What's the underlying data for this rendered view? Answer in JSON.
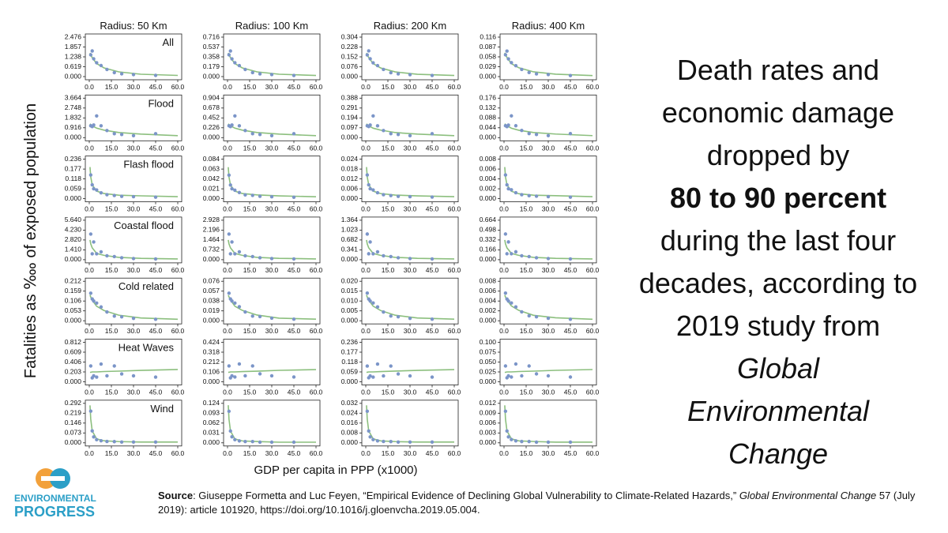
{
  "chart_data": {
    "type": "scatter-grid",
    "ylabel": "Fatalities as ‱ of exposed population",
    "xlabel": "GDP per capita in PPP (x1000)",
    "columns": [
      "Radius: 50 Km",
      "Radius: 100 Km",
      "Radius: 200 Km",
      "Radius: 400 Km"
    ],
    "rows": [
      "All",
      "Flood",
      "Flash flood",
      "Coastal flood",
      "Cold related",
      "Heat Waves",
      "Wind"
    ],
    "point_color": "#7b95c8",
    "fit_color": "#8cbf7e",
    "xlim": [
      0,
      60
    ],
    "xticks": [
      {
        "value": 0,
        "label": "0.0"
      },
      {
        "value": 15,
        "label": "15.0"
      },
      {
        "value": 30,
        "label": "30.0"
      },
      {
        "value": 45,
        "label": "45.0"
      },
      {
        "value": 60,
        "label": "60.0"
      }
    ],
    "x": [
      1,
      2,
      3,
      5,
      8,
      12,
      17,
      22,
      30,
      45
    ],
    "fit_x": [
      0.5,
      1,
      2,
      5,
      10,
      20,
      35,
      60
    ],
    "panels": [
      {
        "ylim": [
          0,
          2.476
        ],
        "yticks": [
          {
            "value": 0,
            "label": "0.000"
          },
          0.619,
          1.238,
          1.857,
          2.476
        ],
        "values": [
          1.362,
          1.609,
          1.114,
          0.867,
          0.693,
          0.446,
          0.248,
          0.173,
          0.124,
          0.074
        ],
        "fit": [
          1.486,
          1.362,
          1.188,
          0.817,
          0.545,
          0.297,
          0.149,
          0.074
        ]
      },
      {
        "ylim": [
          0,
          0.716
        ],
        "yticks": [
          {
            "value": 0,
            "label": "0.000"
          },
          0.179,
          0.358,
          0.537,
          0.716
        ],
        "values": [
          0.394,
          0.465,
          0.322,
          0.251,
          0.2,
          0.129,
          0.072,
          0.05,
          0.036,
          0.021
        ],
        "fit": [
          0.43,
          0.394,
          0.344,
          0.236,
          0.158,
          0.086,
          0.043,
          0.021
        ]
      },
      {
        "ylim": [
          0,
          0.304
        ],
        "yticks": [
          {
            "value": 0,
            "label": "0.000"
          },
          0.076,
          0.152,
          0.228,
          0.304
        ],
        "values": [
          0.167,
          0.198,
          0.137,
          0.106,
          0.085,
          0.055,
          0.03,
          0.021,
          0.015,
          0.009
        ],
        "fit": [
          0.182,
          0.167,
          0.146,
          0.1,
          0.067,
          0.036,
          0.018,
          0.009
        ]
      },
      {
        "ylim": [
          0,
          0.116
        ],
        "yticks": [
          {
            "value": 0,
            "label": "0.000"
          },
          0.029,
          0.058,
          0.087,
          0.116
        ],
        "values": [
          0.064,
          0.075,
          0.052,
          0.041,
          0.032,
          0.021,
          0.012,
          0.008,
          0.006,
          0.003
        ],
        "fit": [
          0.07,
          0.064,
          0.056,
          0.038,
          0.026,
          0.014,
          0.007,
          0.003
        ]
      },
      {
        "ylim": [
          0,
          3.664
        ],
        "yticks": [
          {
            "value": 0,
            "label": "0.000"
          },
          0.916,
          1.832,
          2.748,
          3.664
        ],
        "values": [
          1.099,
          1.026,
          1.172,
          2.015,
          1.099,
          0.66,
          0.366,
          0.293,
          0.183,
          0.366
        ],
        "fit": [
          1.282,
          1.209,
          1.099,
          0.879,
          0.696,
          0.476,
          0.33,
          0.183
        ]
      },
      {
        "ylim": [
          0,
          0.904
        ],
        "yticks": [
          {
            "value": 0,
            "label": "0.000"
          },
          0.226,
          0.452,
          0.678,
          0.904
        ],
        "values": [
          0.271,
          0.253,
          0.289,
          0.497,
          0.271,
          0.163,
          0.09,
          0.072,
          0.045,
          0.09
        ],
        "fit": [
          0.316,
          0.298,
          0.271,
          0.217,
          0.172,
          0.118,
          0.081,
          0.045
        ]
      },
      {
        "ylim": [
          0,
          0.388
        ],
        "yticks": [
          {
            "value": 0,
            "label": "0.000"
          },
          0.097,
          0.194,
          0.291,
          0.388
        ],
        "values": [
          0.116,
          0.109,
          0.124,
          0.213,
          0.116,
          0.07,
          0.039,
          0.031,
          0.019,
          0.039
        ],
        "fit": [
          0.136,
          0.128,
          0.116,
          0.093,
          0.074,
          0.05,
          0.035,
          0.019
        ]
      },
      {
        "ylim": [
          0,
          0.176
        ],
        "yticks": [
          {
            "value": 0,
            "label": "0.000"
          },
          0.044,
          0.088,
          0.132,
          0.176
        ],
        "values": [
          0.053,
          0.049,
          0.056,
          0.097,
          0.053,
          0.032,
          0.018,
          0.014,
          0.009,
          0.018
        ],
        "fit": [
          0.062,
          0.058,
          0.053,
          0.042,
          0.033,
          0.023,
          0.016,
          0.009
        ]
      },
      {
        "ylim": [
          0,
          0.236
        ],
        "yticks": [
          {
            "value": 0,
            "label": "0.000"
          },
          0.059,
          0.118,
          0.177,
          0.236
        ],
        "values": [
          0.142,
          0.083,
          0.059,
          0.052,
          0.035,
          0.024,
          0.019,
          0.014,
          0.012,
          0.009
        ],
        "fit": [
          0.189,
          0.13,
          0.083,
          0.045,
          0.031,
          0.021,
          0.017,
          0.012
        ]
      },
      {
        "ylim": [
          0,
          0.084
        ],
        "yticks": [
          {
            "value": 0,
            "label": "0.000"
          },
          0.021,
          0.042,
          0.063,
          0.084
        ],
        "values": [
          0.05,
          0.029,
          0.021,
          0.018,
          0.013,
          0.008,
          0.007,
          0.005,
          0.004,
          0.003
        ],
        "fit": [
          0.067,
          0.046,
          0.029,
          0.016,
          0.011,
          0.008,
          0.006,
          0.004
        ]
      },
      {
        "ylim": [
          0,
          0.024
        ],
        "yticks": [
          {
            "value": 0,
            "label": "0.000"
          },
          0.006,
          0.012,
          0.018,
          0.024
        ],
        "values": [
          0.0144,
          0.0084,
          0.006,
          0.0053,
          0.0036,
          0.0024,
          0.0019,
          0.0014,
          0.0012,
          0.001
        ],
        "fit": [
          0.0192,
          0.0132,
          0.0084,
          0.0046,
          0.0031,
          0.0022,
          0.0017,
          0.0012
        ]
      },
      {
        "ylim": [
          0,
          0.008
        ],
        "yticks": [
          {
            "value": 0,
            "label": "0.000"
          },
          0.002,
          0.004,
          0.006,
          0.008
        ],
        "values": [
          0.0048,
          0.0028,
          0.002,
          0.0018,
          0.0012,
          0.0008,
          0.0006,
          0.0005,
          0.0004,
          0.0003
        ],
        "fit": [
          0.0064,
          0.0044,
          0.0028,
          0.0015,
          0.001,
          0.0007,
          0.0006,
          0.0004
        ]
      },
      {
        "ylim": [
          0,
          5.64
        ],
        "yticks": [
          {
            "value": 0,
            "label": "0.000"
          },
          {
            "value": 1.41,
            "label": "1.410"
          },
          {
            "value": 2.82,
            "label": "2.820"
          },
          {
            "value": 4.23,
            "label": "4.230"
          },
          {
            "value": 5.64,
            "label": "5.640"
          }
        ],
        "values": [
          3.666,
          0.846,
          2.538,
          0.846,
          1.128,
          0.564,
          0.451,
          0.282,
          0.169,
          0.113
        ],
        "fit": [
          2.82,
          2.256,
          1.692,
          0.902,
          0.62,
          0.338,
          0.197,
          0.113
        ]
      },
      {
        "ylim": [
          0,
          2.928
        ],
        "yticks": [
          {
            "value": 0,
            "label": "0.000"
          },
          0.732,
          1.464,
          2.196,
          2.928
        ],
        "values": [
          1.903,
          0.439,
          1.318,
          0.439,
          0.586,
          0.293,
          0.234,
          0.146,
          0.088,
          0.059
        ],
        "fit": [
          1.464,
          1.171,
          0.878,
          0.468,
          0.322,
          0.176,
          0.102,
          0.059
        ]
      },
      {
        "ylim": [
          0,
          1.364
        ],
        "yticks": [
          {
            "value": 0,
            "label": "0.000"
          },
          0.341,
          0.682,
          1.023,
          1.364
        ],
        "values": [
          0.887,
          0.205,
          0.614,
          0.205,
          0.273,
          0.136,
          0.109,
          0.068,
          0.041,
          0.027
        ],
        "fit": [
          0.682,
          0.546,
          0.409,
          0.218,
          0.15,
          0.082,
          0.048,
          0.027
        ]
      },
      {
        "ylim": [
          0,
          0.664
        ],
        "yticks": [
          {
            "value": 0,
            "label": "0.000"
          },
          0.166,
          0.332,
          0.498,
          0.664
        ],
        "values": [
          0.432,
          0.1,
          0.299,
          0.1,
          0.133,
          0.066,
          0.053,
          0.033,
          0.02,
          0.013
        ],
        "fit": [
          0.332,
          0.266,
          0.199,
          0.106,
          0.073,
          0.04,
          0.023,
          0.013
        ]
      },
      {
        "ylim": [
          0,
          0.212
        ],
        "yticks": [
          {
            "value": 0,
            "label": "0.000"
          },
          0.053,
          0.106,
          0.159,
          0.212
        ],
        "values": [
          0.148,
          0.117,
          0.106,
          0.095,
          0.074,
          0.047,
          0.025,
          0.021,
          0.013,
          0.008
        ],
        "fit": [
          0.138,
          0.127,
          0.11,
          0.078,
          0.055,
          0.03,
          0.015,
          0.008
        ]
      },
      {
        "ylim": [
          0,
          0.076
        ],
        "yticks": [
          {
            "value": 0,
            "label": "0.000"
          },
          0.019,
          0.038,
          0.057,
          0.076
        ],
        "values": [
          0.053,
          0.042,
          0.038,
          0.034,
          0.027,
          0.017,
          0.009,
          0.008,
          0.005,
          0.003
        ],
        "fit": [
          0.049,
          0.046,
          0.04,
          0.028,
          0.02,
          0.011,
          0.005,
          0.003
        ]
      },
      {
        "ylim": [
          0,
          0.02
        ],
        "yticks": [
          {
            "value": 0,
            "label": "0.000"
          },
          0.005,
          {
            "value": 0.01,
            "label": "0.010"
          },
          0.015,
          {
            "value": 0.02,
            "label": "0.020"
          }
        ],
        "values": [
          0.014,
          0.011,
          0.01,
          0.009,
          0.007,
          0.0044,
          0.0024,
          0.002,
          0.0012,
          0.0008
        ],
        "fit": [
          0.013,
          0.012,
          0.0104,
          0.0074,
          0.0052,
          0.0028,
          0.0014,
          0.0008
        ]
      },
      {
        "ylim": [
          0,
          0.008
        ],
        "yticks": [
          {
            "value": 0,
            "label": "0.000"
          },
          0.002,
          0.004,
          0.006,
          0.008
        ],
        "values": [
          0.0056,
          0.0044,
          0.004,
          0.0036,
          0.0028,
          0.0018,
          0.001,
          0.0008,
          0.0005,
          0.0003
        ],
        "fit": [
          0.0052,
          0.0048,
          0.0042,
          0.003,
          0.0021,
          0.0011,
          0.0006,
          0.0003
        ]
      },
      {
        "ylim": [
          0,
          0.812
        ],
        "yticks": [
          {
            "value": 0,
            "label": "0.000"
          },
          0.203,
          0.406,
          0.609,
          0.812
        ],
        "values": [
          0.325,
          0.081,
          0.122,
          0.097,
          0.365,
          0.122,
          0.325,
          0.162,
          0.122,
          0.097
        ],
        "fit": [
          0.195,
          0.195,
          0.203,
          0.203,
          0.211,
          0.219,
          0.235,
          0.252
        ]
      },
      {
        "ylim": [
          0,
          0.424
        ],
        "yticks": [
          {
            "value": 0,
            "label": "0.000"
          },
          0.106,
          0.212,
          0.318,
          0.424
        ],
        "values": [
          0.17,
          0.042,
          0.064,
          0.051,
          0.191,
          0.064,
          0.17,
          0.085,
          0.064,
          0.051
        ],
        "fit": [
          0.102,
          0.102,
          0.106,
          0.106,
          0.11,
          0.114,
          0.123,
          0.131
        ]
      },
      {
        "ylim": [
          0,
          0.236
        ],
        "yticks": [
          {
            "value": 0,
            "label": "0.000"
          },
          0.059,
          0.118,
          0.177,
          0.236
        ],
        "values": [
          0.094,
          0.024,
          0.035,
          0.028,
          0.106,
          0.035,
          0.094,
          0.047,
          0.035,
          0.028
        ],
        "fit": [
          0.057,
          0.057,
          0.059,
          0.059,
          0.061,
          0.064,
          0.068,
          0.073
        ]
      },
      {
        "ylim": [
          0,
          0.1
        ],
        "yticks": [
          {
            "value": 0,
            "label": "0.000"
          },
          0.025,
          {
            "value": 0.05,
            "label": "0.050"
          },
          0.075,
          {
            "value": 0.1,
            "label": "0.100"
          }
        ],
        "values": [
          0.04,
          0.01,
          0.015,
          0.012,
          0.045,
          0.015,
          0.04,
          0.02,
          0.015,
          0.012
        ],
        "fit": [
          0.024,
          0.024,
          0.025,
          0.025,
          0.026,
          0.027,
          0.029,
          0.031
        ]
      },
      {
        "ylim": [
          0,
          0.292
        ],
        "yticks": [
          {
            "value": 0,
            "label": "0.000"
          },
          0.073,
          0.146,
          0.219,
          0.292
        ],
        "values": [
          0.234,
          0.088,
          0.044,
          0.023,
          0.015,
          0.01,
          0.009,
          0.006,
          0.006,
          0.006
        ],
        "fit": [
          0.277,
          0.175,
          0.088,
          0.029,
          0.015,
          0.009,
          0.006,
          0.006
        ]
      },
      {
        "ylim": [
          0,
          0.124
        ],
        "yticks": [
          {
            "value": 0,
            "label": "0.000"
          },
          0.031,
          0.062,
          0.093,
          0.124
        ],
        "values": [
          0.099,
          0.037,
          0.019,
          0.01,
          0.006,
          0.004,
          0.004,
          0.002,
          0.002,
          0.002
        ],
        "fit": [
          0.118,
          0.074,
          0.037,
          0.012,
          0.006,
          0.004,
          0.002,
          0.002
        ]
      },
      {
        "ylim": [
          0,
          0.032
        ],
        "yticks": [
          {
            "value": 0,
            "label": "0.000"
          },
          0.008,
          0.016,
          0.024,
          0.032
        ],
        "values": [
          0.0256,
          0.0096,
          0.0048,
          0.0026,
          0.0016,
          0.0011,
          0.001,
          0.0006,
          0.0006,
          0.0006
        ],
        "fit": [
          0.0304,
          0.0192,
          0.0096,
          0.0032,
          0.0016,
          0.001,
          0.0006,
          0.0006
        ]
      },
      {
        "ylim": [
          0,
          0.012
        ],
        "yticks": [
          {
            "value": 0,
            "label": "0.000"
          },
          0.003,
          0.006,
          0.009,
          0.012
        ],
        "values": [
          0.0096,
          0.0036,
          0.0018,
          0.001,
          0.0006,
          0.0004,
          0.0004,
          0.0002,
          0.0002,
          0.0002
        ],
        "fit": [
          0.0114,
          0.0072,
          0.0036,
          0.0012,
          0.0006,
          0.0004,
          0.0002,
          0.0002
        ]
      }
    ]
  },
  "headline": {
    "lead": "Death rates and economic damage dropped by",
    "bold": "80 to 90 percent",
    "rest": "during the last four decades, according to 2019 study from",
    "journal": "Global Environmental Change"
  },
  "source": {
    "label": "Source",
    "before": ": Giuseppe Formetta and Luc Feyen, “Empirical Evidence of Declining Global Vulnerability to Climate-Related Hazards,” ",
    "journal": "Global Environmental Change",
    "after": " 57 (July 2019): article 101920, https://doi.org/10.1016/j.gloenvcha.2019.05.004."
  },
  "logo": {
    "line1": "ENVIRONMENTAL",
    "line2": "PROGRESS"
  }
}
